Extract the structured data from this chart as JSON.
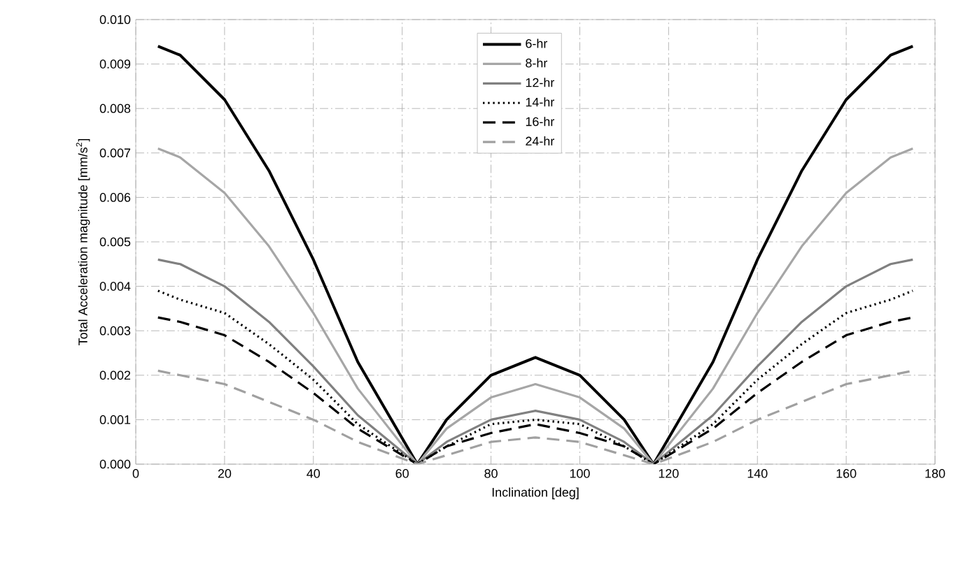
{
  "chart_data": {
    "type": "line",
    "xlabel": "Inclination [deg]",
    "ylabel": "Total Acceleration magnitude [mm/s$^{2}$]",
    "x": [
      5,
      10,
      20,
      30,
      40,
      50,
      63.4,
      70,
      80,
      90,
      100,
      110,
      116.6,
      130,
      140,
      150,
      160,
      170,
      175
    ],
    "series": [
      {
        "name": "6-hr",
        "color": "#000000",
        "line_style": "solid",
        "values": [
          0.0094,
          0.0092,
          0.0082,
          0.0066,
          0.0046,
          0.0023,
          0,
          0.001,
          0.002,
          0.0024,
          0.002,
          0.001,
          0,
          0.0023,
          0.0046,
          0.0066,
          0.0082,
          0.0092,
          0.0094
        ]
      },
      {
        "name": "8-hr",
        "color": "#a6a6a6",
        "line_style": "solid",
        "values": [
          0.0071,
          0.0069,
          0.0061,
          0.0049,
          0.0034,
          0.0017,
          0,
          0.0008,
          0.0015,
          0.0018,
          0.0015,
          0.0008,
          0,
          0.0017,
          0.0034,
          0.0049,
          0.0061,
          0.0069,
          0.0071
        ]
      },
      {
        "name": "12-hr",
        "color": "#808080",
        "line_style": "solid",
        "values": [
          0.0046,
          0.0045,
          0.004,
          0.0032,
          0.0022,
          0.0011,
          0,
          0.0005,
          0.001,
          0.0012,
          0.001,
          0.0005,
          0,
          0.0011,
          0.0022,
          0.0032,
          0.004,
          0.0045,
          0.0046
        ]
      },
      {
        "name": "14-hr",
        "color": "#000000",
        "line_style": "dotted",
        "values": [
          0.0039,
          0.0037,
          0.0034,
          0.0027,
          0.0019,
          0.0009,
          0,
          0.0004,
          0.0009,
          0.001,
          0.0009,
          0.0004,
          0,
          0.0009,
          0.0019,
          0.0027,
          0.0034,
          0.0037,
          0.0039
        ]
      },
      {
        "name": "16-hr",
        "color": "#000000",
        "line_style": "dashed",
        "values": [
          0.0033,
          0.0032,
          0.0029,
          0.0023,
          0.0016,
          0.0008,
          0,
          0.0004,
          0.0007,
          0.0009,
          0.0007,
          0.0004,
          0,
          0.0008,
          0.0016,
          0.0023,
          0.0029,
          0.0032,
          0.0033
        ]
      },
      {
        "name": "24-hr",
        "color": "#a0a0a0",
        "line_style": "dashed",
        "values": [
          0.0021,
          0.002,
          0.0018,
          0.0014,
          0.001,
          0.0005,
          0,
          0.0002,
          0.0005,
          0.0006,
          0.0005,
          0.0002,
          0,
          0.0005,
          0.001,
          0.0014,
          0.0018,
          0.002,
          0.0021
        ]
      }
    ],
    "xlim": [
      0,
      180
    ],
    "xticks": [
      0,
      20,
      40,
      60,
      80,
      100,
      120,
      140,
      160,
      180
    ],
    "ylim": [
      0,
      0.01
    ],
    "yticks": [
      {
        "value": 0,
        "label": "0.000"
      },
      {
        "value": 0.001,
        "label": "0.001"
      },
      {
        "value": 0.002,
        "label": "0.002"
      },
      {
        "value": 0.003,
        "label": "0.003"
      },
      {
        "value": 0.004,
        "label": "0.004"
      },
      {
        "value": 0.005,
        "label": "0.005"
      },
      {
        "value": 0.006,
        "label": "0.006"
      },
      {
        "value": 0.007,
        "label": "0.007"
      },
      {
        "value": 0.008,
        "label": "0.008"
      },
      {
        "value": 0.009,
        "label": "0.009"
      },
      {
        "value": 0.01,
        "label": "0.010"
      }
    ],
    "grid": true,
    "legend": "top",
    "marker": "none"
  }
}
